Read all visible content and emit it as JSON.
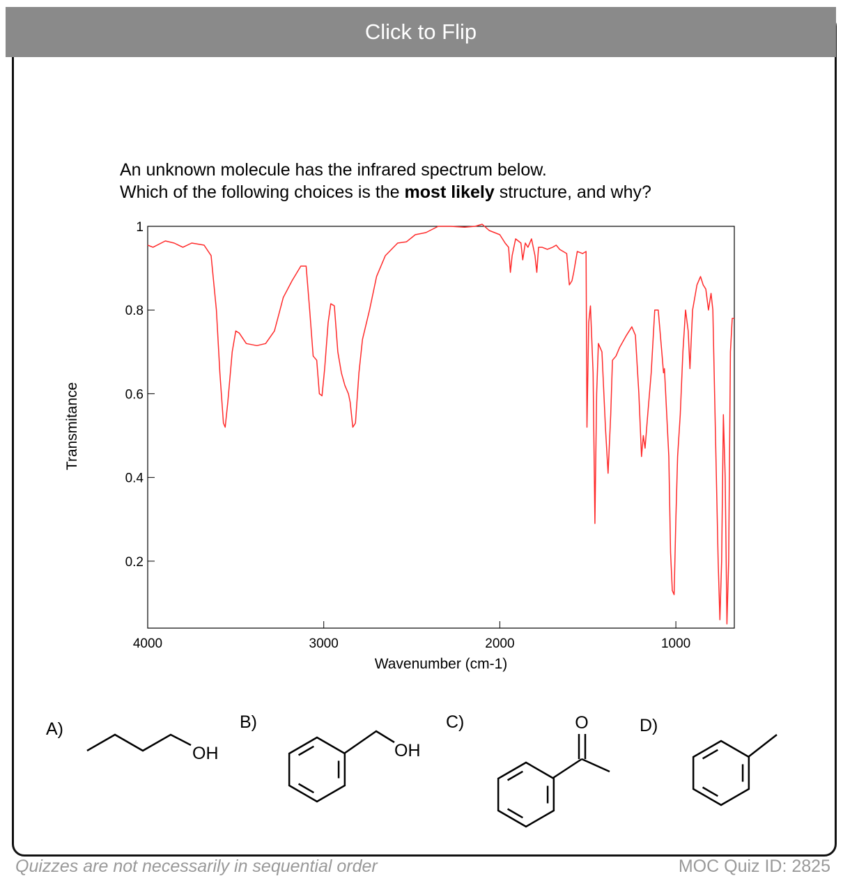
{
  "header": {
    "button": "Click to Flip"
  },
  "question": {
    "line1": "An unknown molecule has the infrared spectrum below.",
    "line2_before": "Which of the following choices is the",
    "line2_bold": "most likely",
    "line2_after": "structure, and why?"
  },
  "chart_data": {
    "type": "line",
    "x_label": "Wavenumber (cm-1)",
    "y_label": "Transmitance",
    "color": "#ff2a2a",
    "xlim": [
      4000,
      668
    ],
    "ylim": [
      0.04,
      1
    ],
    "xticks": [
      4000,
      3000,
      2000,
      1000
    ],
    "yticks": [
      0.2,
      0.4,
      0.6,
      0.8,
      1
    ],
    "grid": false,
    "x": [
      4000,
      3970,
      3900,
      3850,
      3800,
      3750,
      3680,
      3640,
      3610,
      3590,
      3570,
      3560,
      3545,
      3520,
      3500,
      3480,
      3440,
      3380,
      3330,
      3280,
      3230,
      3180,
      3130,
      3100,
      3080,
      3060,
      3040,
      3025,
      3010,
      2995,
      2975,
      2960,
      2940,
      2920,
      2900,
      2880,
      2860,
      2850,
      2835,
      2820,
      2800,
      2780,
      2740,
      2700,
      2650,
      2580,
      2530,
      2480,
      2420,
      2350,
      2280,
      2200,
      2140,
      2100,
      2060,
      2000,
      1970,
      1950,
      1940,
      1930,
      1910,
      1880,
      1870,
      1855,
      1840,
      1820,
      1800,
      1790,
      1780,
      1760,
      1730,
      1700,
      1680,
      1660,
      1640,
      1620,
      1605,
      1590,
      1580,
      1560,
      1530,
      1510,
      1505,
      1495,
      1485,
      1470,
      1460,
      1450,
      1440,
      1420,
      1400,
      1385,
      1370,
      1360,
      1340,
      1320,
      1280,
      1250,
      1230,
      1210,
      1195,
      1185,
      1175,
      1160,
      1140,
      1120,
      1100,
      1080,
      1070,
      1065,
      1060,
      1040,
      1030,
      1020,
      1010,
      1000,
      990,
      975,
      960,
      945,
      930,
      920,
      905,
      880,
      860,
      845,
      830,
      815,
      800,
      790,
      780,
      760,
      750,
      740,
      730,
      720,
      710,
      700,
      690,
      680,
      668
    ],
    "values": [
      0.955,
      0.95,
      0.965,
      0.96,
      0.95,
      0.96,
      0.955,
      0.93,
      0.8,
      0.65,
      0.53,
      0.52,
      0.58,
      0.7,
      0.75,
      0.745,
      0.72,
      0.715,
      0.72,
      0.75,
      0.83,
      0.87,
      0.905,
      0.905,
      0.8,
      0.69,
      0.68,
      0.6,
      0.595,
      0.66,
      0.77,
      0.815,
      0.81,
      0.7,
      0.65,
      0.62,
      0.6,
      0.58,
      0.52,
      0.53,
      0.65,
      0.73,
      0.8,
      0.88,
      0.93,
      0.96,
      0.963,
      0.98,
      0.985,
      1.0,
      1.0,
      0.998,
      1.0,
      1.005,
      0.99,
      0.98,
      0.96,
      0.95,
      0.89,
      0.93,
      0.97,
      0.96,
      0.92,
      0.96,
      0.95,
      0.97,
      0.93,
      0.89,
      0.95,
      0.95,
      0.945,
      0.95,
      0.955,
      0.945,
      0.94,
      0.935,
      0.86,
      0.87,
      0.89,
      0.94,
      0.935,
      0.94,
      0.52,
      0.77,
      0.81,
      0.65,
      0.29,
      0.6,
      0.72,
      0.7,
      0.52,
      0.41,
      0.55,
      0.68,
      0.69,
      0.71,
      0.74,
      0.76,
      0.74,
      0.6,
      0.45,
      0.5,
      0.47,
      0.55,
      0.65,
      0.8,
      0.8,
      0.7,
      0.65,
      0.66,
      0.62,
      0.45,
      0.22,
      0.13,
      0.12,
      0.3,
      0.45,
      0.55,
      0.7,
      0.8,
      0.75,
      0.66,
      0.8,
      0.86,
      0.88,
      0.86,
      0.85,
      0.8,
      0.84,
      0.8,
      0.6,
      0.2,
      0.06,
      0.2,
      0.55,
      0.4,
      0.05,
      0.2,
      0.7,
      0.78,
      0.78
    ]
  },
  "choices": [
    {
      "label": "A)",
      "group": "OH"
    },
    {
      "label": "B)",
      "group": "OH"
    },
    {
      "label": "C)",
      "group": "O"
    },
    {
      "label": "D)"
    }
  ],
  "footer": {
    "note": "Quizzes are not necessarily in sequential order",
    "quiz_id": "MOC Quiz ID: 2825"
  }
}
